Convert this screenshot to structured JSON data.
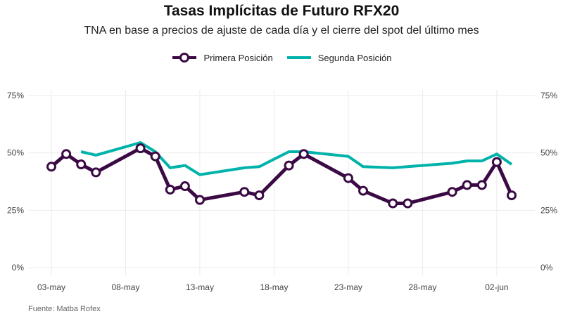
{
  "title": "Tasas Implícitas de Futuro RFX20",
  "subtitle": "TNA en base a precios de ajuste de cada día y el cierre del spot del último mes",
  "source": "Fuente: Matba Rofex",
  "colors": {
    "primera": "#3b0a45",
    "segunda": "#00b3aa",
    "grid": "#ebebeb"
  },
  "chart_data": {
    "type": "line",
    "title": "Tasas Implícitas de Futuro RFX20",
    "subtitle": "TNA en base a precios de ajuste de cada día y el cierre del spot del último mes",
    "xlabel": "",
    "ylabel": "",
    "x_ticks": [
      "03-may",
      "08-may",
      "13-may",
      "18-may",
      "23-may",
      "28-may",
      "02-jun"
    ],
    "y_ticks": [
      "0%",
      "25%",
      "50%",
      "75%"
    ],
    "ylim": [
      0,
      75
    ],
    "legend": "top-center",
    "grid": true,
    "series": [
      {
        "name": "Primera Posición",
        "points": [
          {
            "x": "2023-05-03",
            "y": 44
          },
          {
            "x": "2023-05-04",
            "y": 49.5
          },
          {
            "x": "2023-05-05",
            "y": 45
          },
          {
            "x": "2023-05-06",
            "y": 41.5
          },
          {
            "x": "2023-05-09",
            "y": 52
          },
          {
            "x": "2023-05-10",
            "y": 48.5
          },
          {
            "x": "2023-05-11",
            "y": 34
          },
          {
            "x": "2023-05-12",
            "y": 35.5
          },
          {
            "x": "2023-05-13",
            "y": 29.5
          },
          {
            "x": "2023-05-16",
            "y": 33
          },
          {
            "x": "2023-05-17",
            "y": 31.5
          },
          {
            "x": "2023-05-19",
            "y": 44.5
          },
          {
            "x": "2023-05-20",
            "y": 49.5
          },
          {
            "x": "2023-05-23",
            "y": 39
          },
          {
            "x": "2023-05-24",
            "y": 33.5
          },
          {
            "x": "2023-05-26",
            "y": 28
          },
          {
            "x": "2023-05-27",
            "y": 28
          },
          {
            "x": "2023-05-30",
            "y": 33
          },
          {
            "x": "2023-05-31",
            "y": 36
          },
          {
            "x": "2023-06-01",
            "y": 36
          },
          {
            "x": "2023-06-02",
            "y": 46
          },
          {
            "x": "2023-06-03",
            "y": 31.5
          }
        ]
      },
      {
        "name": "Segunda Posición",
        "points": [
          {
            "x": "2023-05-05",
            "y": 50.5
          },
          {
            "x": "2023-05-06",
            "y": 49
          },
          {
            "x": "2023-05-09",
            "y": 54.5
          },
          {
            "x": "2023-05-10",
            "y": 50.5
          },
          {
            "x": "2023-05-11",
            "y": 43.5
          },
          {
            "x": "2023-05-12",
            "y": 44.5
          },
          {
            "x": "2023-05-13",
            "y": 40.5
          },
          {
            "x": "2023-05-16",
            "y": 43.5
          },
          {
            "x": "2023-05-17",
            "y": 44
          },
          {
            "x": "2023-05-19",
            "y": 50.5
          },
          {
            "x": "2023-05-20",
            "y": 50.5
          },
          {
            "x": "2023-05-23",
            "y": 48.5
          },
          {
            "x": "2023-05-24",
            "y": 44
          },
          {
            "x": "2023-05-26",
            "y": 43.5
          },
          {
            "x": "2023-05-30",
            "y": 45.5
          },
          {
            "x": "2023-05-31",
            "y": 46.5
          },
          {
            "x": "2023-06-01",
            "y": 46.5
          },
          {
            "x": "2023-06-02",
            "y": 49.5
          },
          {
            "x": "2023-06-03",
            "y": 45
          }
        ]
      }
    ]
  }
}
